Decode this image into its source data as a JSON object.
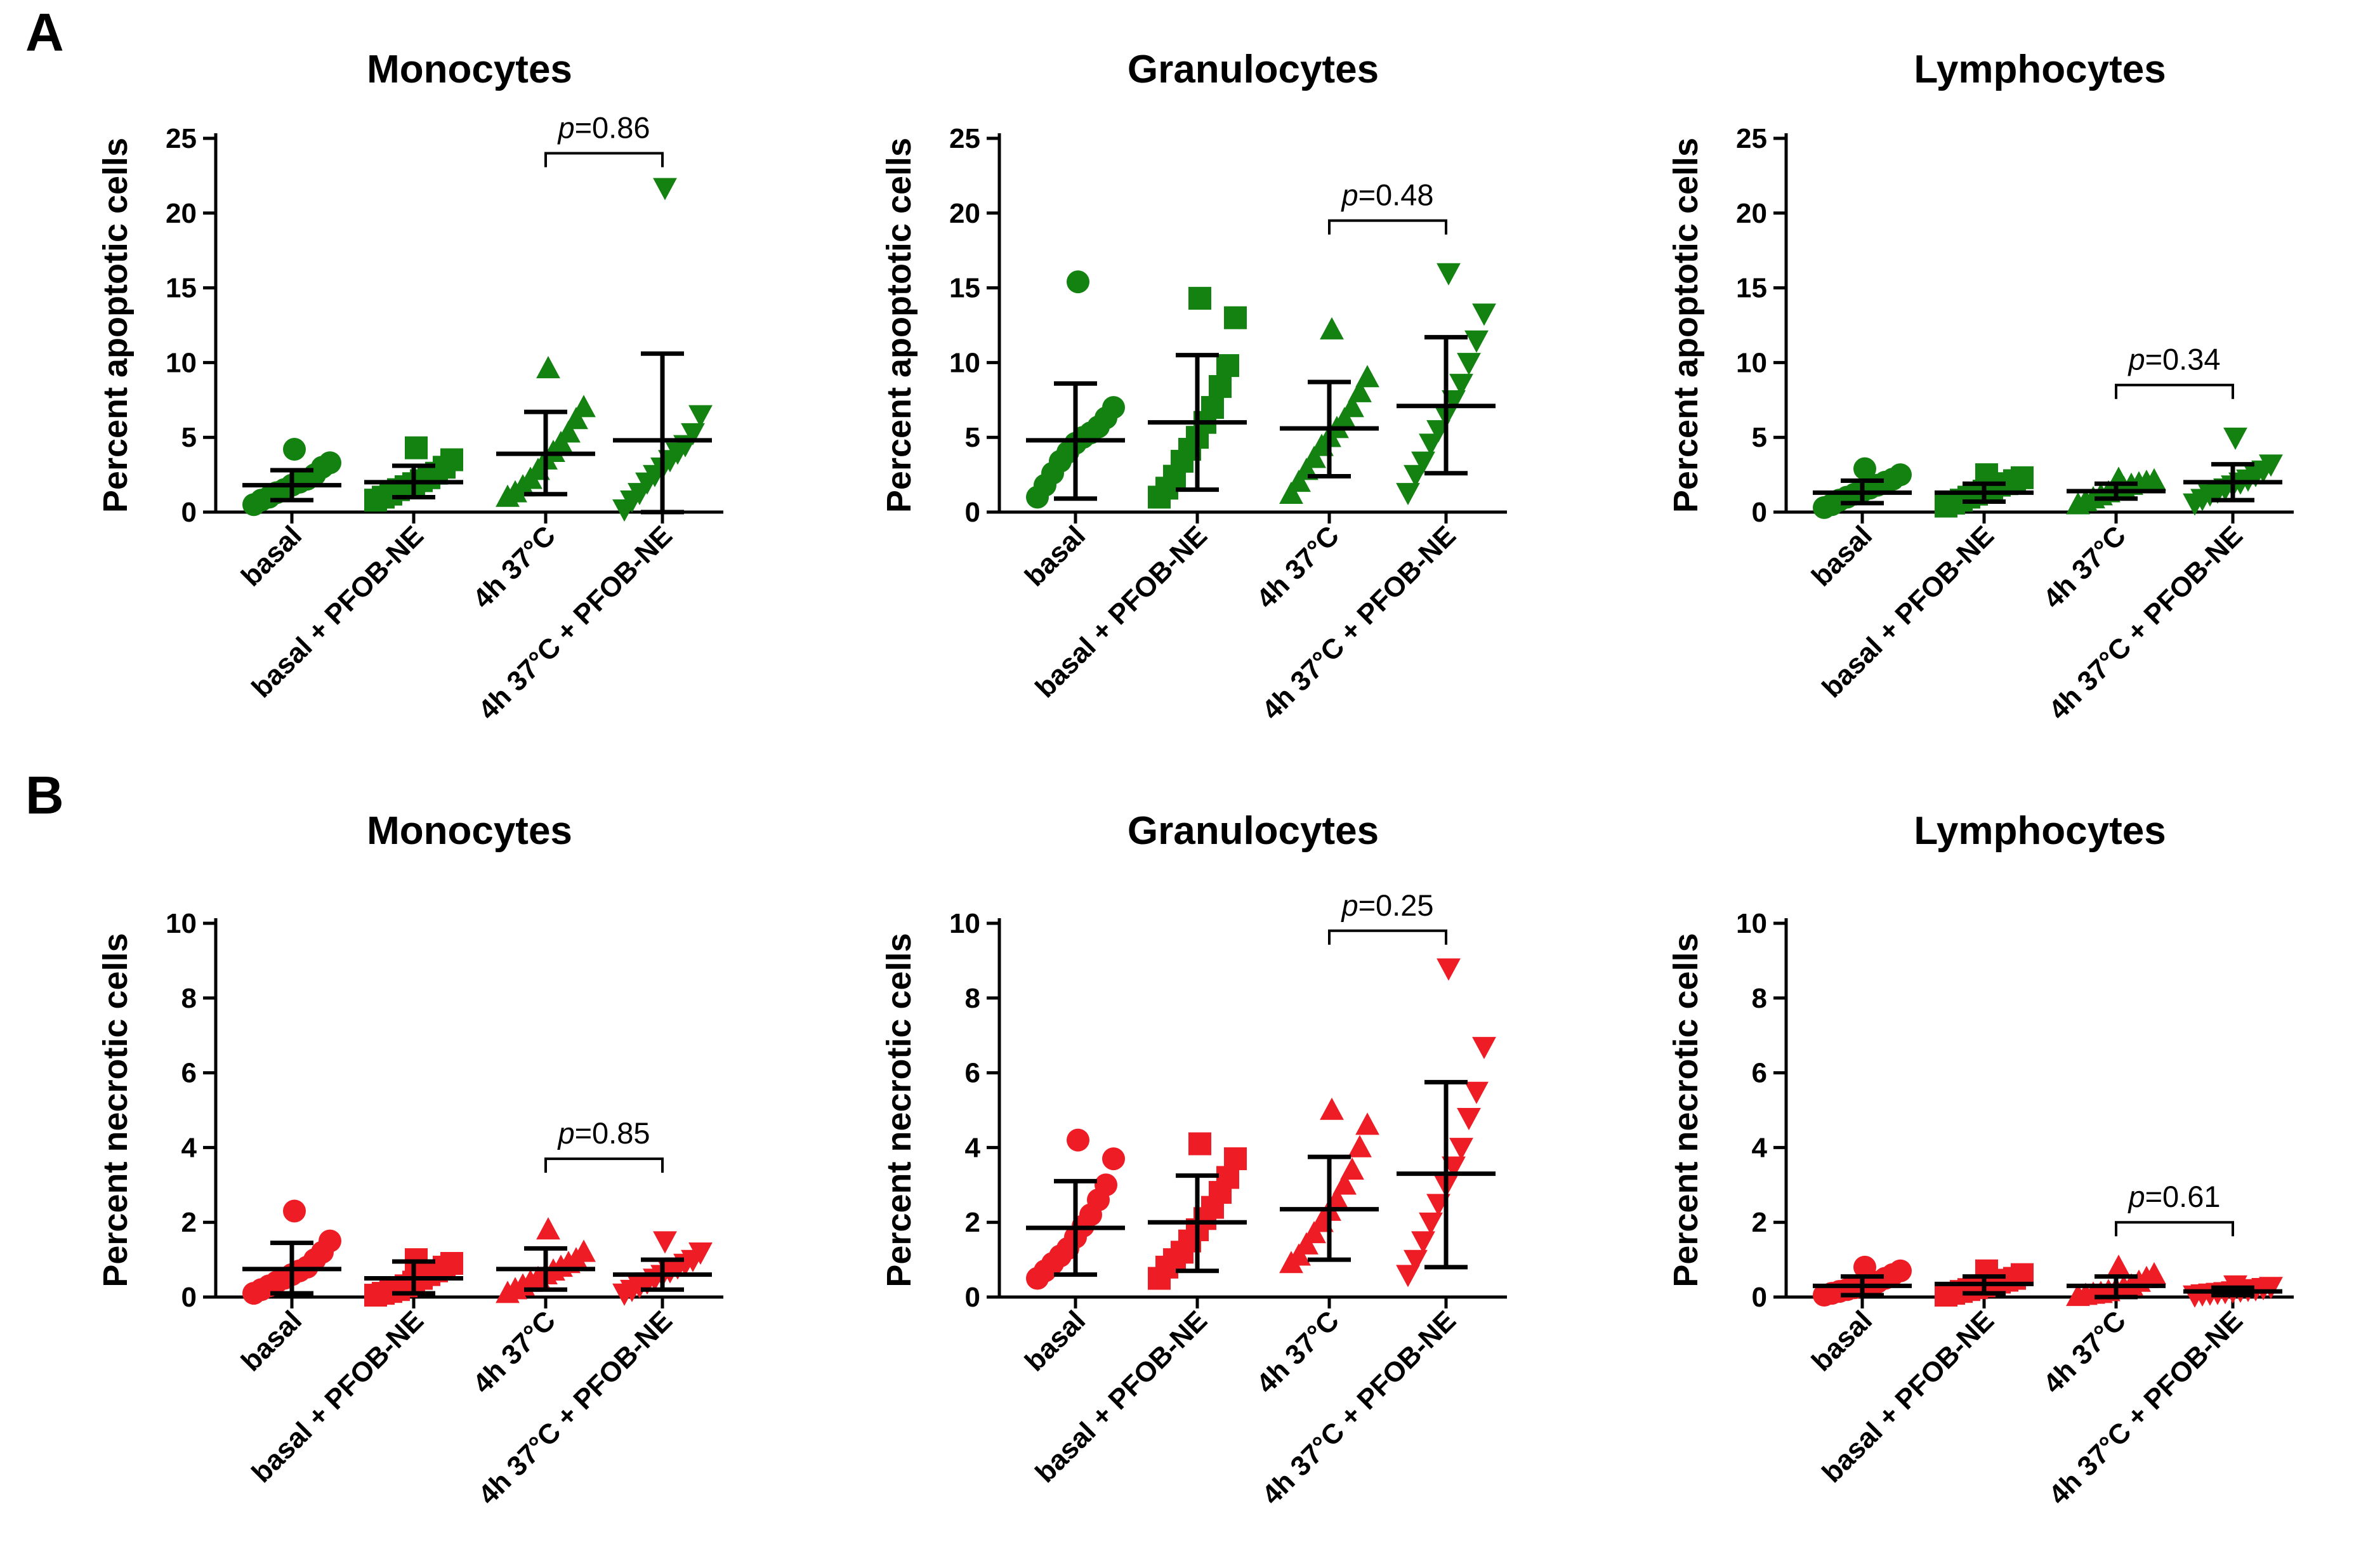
{
  "panels": [
    {
      "letter": "A",
      "label_y": 80
    },
    {
      "letter": "B",
      "label_y": 1282
    }
  ],
  "colors": {
    "apoptotic": "#138210",
    "necrotic": "#ee1c24",
    "axis": "#000000"
  },
  "markers": [
    "circle",
    "square",
    "triangle-up",
    "triangle-down"
  ],
  "chart_data": [
    {
      "type": "scatter",
      "panel": "A",
      "title": "Monocytes",
      "ylabel": "Percent apoptotic cells",
      "categories": [
        "basal",
        "basal + PFOB-NE",
        "4h 37°C",
        "4h 37°C + PFOB-NE"
      ],
      "ylim": [
        0,
        25
      ],
      "yticks": [
        0,
        5,
        10,
        15,
        20,
        25
      ],
      "series": [
        {
          "points": [
            0.5,
            0.8,
            1.0,
            1.3,
            1.5,
            1.8,
            2.0,
            2.2,
            2.5,
            3.0,
            3.3,
            4.2
          ],
          "mean": 1.8,
          "sd": [
            0.8,
            2.8
          ]
        },
        {
          "points": [
            0.8,
            1.0,
            1.2,
            1.5,
            1.7,
            1.9,
            2.1,
            2.3,
            2.6,
            3.0,
            3.5,
            4.3
          ],
          "mean": 2.0,
          "sd": [
            1.0,
            3.1
          ]
        },
        {
          "points": [
            1.0,
            1.3,
            1.7,
            2.2,
            2.8,
            3.5,
            4.0,
            4.6,
            5.3,
            6.2,
            7.0,
            9.6
          ],
          "mean": 3.9,
          "sd": [
            1.2,
            6.7
          ]
        },
        {
          "points": [
            0.2,
            0.8,
            1.3,
            2.0,
            2.5,
            3.0,
            3.5,
            4.0,
            4.5,
            5.3,
            6.5,
            21.7
          ],
          "mean": 4.8,
          "sd": [
            0.0,
            10.6
          ]
        }
      ],
      "comparison": {
        "from": 2,
        "to": 3,
        "p_label": "p",
        "p_value": "=0.86",
        "y": 24
      }
    },
    {
      "type": "scatter",
      "panel": "A",
      "title": "Granulocytes",
      "ylabel": "Percent apoptotic cells",
      "categories": [
        "basal",
        "basal + PFOB-NE",
        "4h 37°C",
        "4h 37°C + PFOB-NE"
      ],
      "ylim": [
        0,
        25
      ],
      "yticks": [
        0,
        5,
        10,
        15,
        20,
        25
      ],
      "series": [
        {
          "points": [
            1.0,
            1.8,
            2.6,
            3.4,
            4.0,
            4.6,
            5.0,
            5.3,
            5.7,
            6.3,
            7.0,
            15.4
          ],
          "mean": 4.8,
          "sd": [
            0.9,
            8.6
          ]
        },
        {
          "points": [
            1.0,
            1.6,
            2.4,
            3.4,
            4.2,
            5.0,
            6.0,
            7.0,
            8.4,
            9.8,
            13.0,
            14.3
          ],
          "mean": 6.0,
          "sd": [
            1.5,
            10.5
          ]
        },
        {
          "points": [
            1.2,
            2.0,
            2.8,
            3.6,
            4.4,
            5.0,
            5.6,
            6.2,
            7.0,
            8.0,
            9.0,
            12.2
          ],
          "mean": 5.6,
          "sd": [
            2.4,
            8.7
          ]
        },
        {
          "points": [
            1.3,
            2.5,
            3.4,
            4.6,
            5.5,
            6.5,
            7.5,
            8.6,
            10.0,
            11.5,
            13.3,
            16.0
          ],
          "mean": 7.1,
          "sd": [
            2.6,
            11.7
          ]
        }
      ],
      "comparison": {
        "from": 2,
        "to": 3,
        "p_label": "p",
        "p_value": "=0.48",
        "y": 19.5
      }
    },
    {
      "type": "scatter",
      "panel": "A",
      "title": "Lymphocytes",
      "ylabel": "Percent apoptotic cells",
      "categories": [
        "basal",
        "basal + PFOB-NE",
        "4h 37°C",
        "4h 37°C + PFOB-NE"
      ],
      "ylim": [
        0,
        25
      ],
      "yticks": [
        0,
        5,
        10,
        15,
        20,
        25
      ],
      "series": [
        {
          "points": [
            0.3,
            0.5,
            0.8,
            1.0,
            1.2,
            1.4,
            1.6,
            1.8,
            2.0,
            2.2,
            2.5,
            2.9
          ],
          "mean": 1.3,
          "sd": [
            0.6,
            2.1
          ]
        },
        {
          "points": [
            0.4,
            0.6,
            0.8,
            1.0,
            1.2,
            1.4,
            1.6,
            1.8,
            1.9,
            2.1,
            2.3,
            2.5
          ],
          "mean": 1.3,
          "sd": [
            0.7,
            1.9
          ]
        },
        {
          "points": [
            0.5,
            0.7,
            0.9,
            1.1,
            1.3,
            1.5,
            1.6,
            1.8,
            1.9,
            2.0,
            2.1,
            2.2
          ],
          "mean": 1.4,
          "sd": [
            0.9,
            1.9
          ]
        },
        {
          "points": [
            0.6,
            0.9,
            1.2,
            1.4,
            1.6,
            1.8,
            2.0,
            2.2,
            2.5,
            2.8,
            3.2,
            5.0
          ],
          "mean": 2.0,
          "sd": [
            0.8,
            3.2
          ]
        }
      ],
      "comparison": {
        "from": 2,
        "to": 3,
        "p_label": "p",
        "p_value": "=0.34",
        "y": 8.5
      }
    },
    {
      "type": "scatter",
      "panel": "B",
      "title": "Monocytes",
      "ylabel": "Percent necrotic cells",
      "categories": [
        "basal",
        "basal + PFOB-NE",
        "4h 37°C",
        "4h 37°C + PFOB-NE"
      ],
      "ylim": [
        0,
        10
      ],
      "yticks": [
        0,
        2,
        4,
        6,
        8,
        10
      ],
      "series": [
        {
          "points": [
            0.1,
            0.2,
            0.3,
            0.4,
            0.5,
            0.6,
            0.7,
            0.8,
            1.0,
            1.2,
            1.5,
            2.3
          ],
          "mean": 0.75,
          "sd": [
            0.1,
            1.45
          ]
        },
        {
          "points": [
            0.05,
            0.1,
            0.15,
            0.2,
            0.3,
            0.4,
            0.5,
            0.6,
            0.7,
            0.8,
            0.9,
            1.0
          ],
          "mean": 0.5,
          "sd": [
            0.1,
            0.95
          ]
        },
        {
          "points": [
            0.1,
            0.2,
            0.3,
            0.4,
            0.5,
            0.6,
            0.7,
            0.8,
            0.9,
            1.0,
            1.2,
            1.8
          ],
          "mean": 0.75,
          "sd": [
            0.2,
            1.3
          ]
        },
        {
          "points": [
            0.1,
            0.2,
            0.3,
            0.4,
            0.5,
            0.6,
            0.7,
            0.8,
            0.9,
            1.0,
            1.2,
            1.5
          ],
          "mean": 0.6,
          "sd": [
            0.2,
            1.0
          ]
        }
      ],
      "comparison": {
        "from": 2,
        "to": 3,
        "p_label": "p",
        "p_value": "=0.85",
        "y": 3.7
      }
    },
    {
      "type": "scatter",
      "panel": "B",
      "title": "Granulocytes",
      "ylabel": "Percent necrotic cells",
      "categories": [
        "basal",
        "basal + PFOB-NE",
        "4h 37°C",
        "4h 37°C + PFOB-NE"
      ],
      "ylim": [
        0,
        10
      ],
      "yticks": [
        0,
        2,
        4,
        6,
        8,
        10
      ],
      "series": [
        {
          "points": [
            0.5,
            0.7,
            0.9,
            1.1,
            1.3,
            1.6,
            1.9,
            2.2,
            2.6,
            3.0,
            3.7,
            4.2
          ],
          "mean": 1.85,
          "sd": [
            0.6,
            3.1
          ]
        },
        {
          "points": [
            0.5,
            0.8,
            1.0,
            1.2,
            1.5,
            1.8,
            2.1,
            2.4,
            2.8,
            3.2,
            3.7,
            4.1
          ],
          "mean": 2.0,
          "sd": [
            0.7,
            3.25
          ]
        },
        {
          "points": [
            0.9,
            1.1,
            1.4,
            1.7,
            2.0,
            2.3,
            2.6,
            3.0,
            3.4,
            4.0,
            4.6,
            5.0
          ],
          "mean": 2.35,
          "sd": [
            1.0,
            3.75
          ]
        },
        {
          "points": [
            0.6,
            1.0,
            1.5,
            2.0,
            2.5,
            3.0,
            3.5,
            4.0,
            4.8,
            5.5,
            6.7,
            8.8
          ],
          "mean": 3.3,
          "sd": [
            0.8,
            5.75
          ]
        }
      ],
      "comparison": {
        "from": 2,
        "to": 3,
        "p_label": "p",
        "p_value": "=0.25",
        "y": 9.8
      }
    },
    {
      "type": "scatter",
      "panel": "B",
      "title": "Lymphocytes",
      "ylabel": "Percent necrotic cells",
      "categories": [
        "basal",
        "basal + PFOB-NE",
        "4h 37°C",
        "4h 37°C + PFOB-NE"
      ],
      "ylim": [
        0,
        10
      ],
      "yticks": [
        0,
        2,
        4,
        6,
        8,
        10
      ],
      "series": [
        {
          "points": [
            0.05,
            0.1,
            0.15,
            0.2,
            0.25,
            0.3,
            0.35,
            0.4,
            0.5,
            0.6,
            0.7,
            0.8
          ],
          "mean": 0.3,
          "sd": [
            0.05,
            0.55
          ]
        },
        {
          "points": [
            0.05,
            0.1,
            0.15,
            0.2,
            0.25,
            0.3,
            0.35,
            0.4,
            0.45,
            0.5,
            0.6,
            0.7
          ],
          "mean": 0.35,
          "sd": [
            0.1,
            0.55
          ]
        },
        {
          "points": [
            0.02,
            0.05,
            0.08,
            0.1,
            0.15,
            0.2,
            0.25,
            0.3,
            0.4,
            0.5,
            0.6,
            0.8
          ],
          "mean": 0.3,
          "sd": [
            0.0,
            0.55
          ]
        },
        {
          "points": [
            0.05,
            0.08,
            0.1,
            0.12,
            0.14,
            0.16,
            0.18,
            0.2,
            0.22,
            0.25,
            0.28,
            0.32
          ],
          "mean": 0.15,
          "sd": [
            0.05,
            0.25
          ]
        }
      ],
      "comparison": {
        "from": 2,
        "to": 3,
        "p_label": "p",
        "p_value": "=0.61",
        "y": 2.0
      }
    }
  ]
}
